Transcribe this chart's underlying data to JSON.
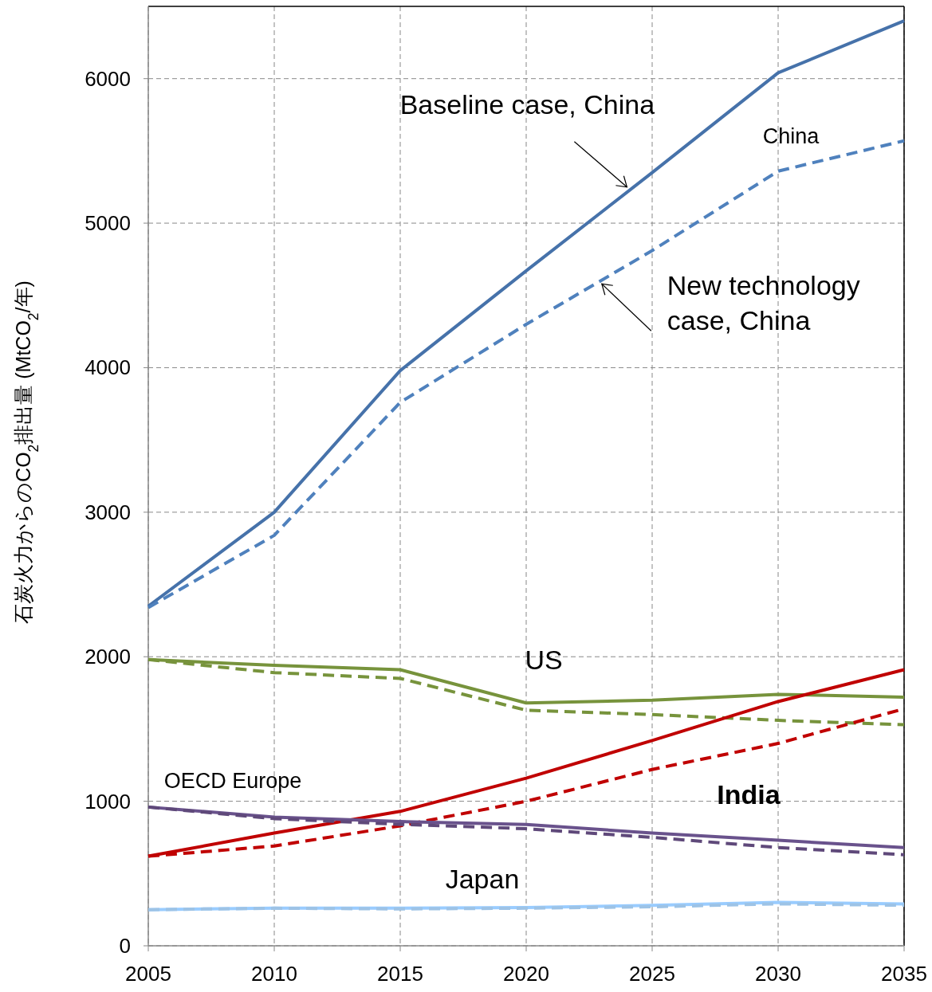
{
  "chart_data": {
    "type": "line",
    "ylabel": "石炭火力からのCO$_{2}$排出量 (MtCO$_{2}$/年)",
    "x": [
      2005,
      2010,
      2015,
      2020,
      2025,
      2030,
      2035
    ],
    "xlim": [
      2005,
      2035
    ],
    "xticks": [
      2005,
      2010,
      2015,
      2020,
      2025,
      2030,
      2035
    ],
    "ylim": [
      0,
      6500
    ],
    "yticks": [
      0,
      1000,
      2000,
      3000,
      4000,
      5000,
      6000
    ],
    "grid": true,
    "series": [
      {
        "color": "#4672aa",
        "line_style": "solid",
        "values": [
          2350,
          3000,
          3980,
          4670,
          5350,
          6040,
          6400
        ]
      },
      {
        "color": "#4f81bd",
        "line_style": "dashed",
        "values": [
          2340,
          2840,
          3760,
          4300,
          4810,
          5360,
          5570
        ]
      },
      {
        "color": "#77933c",
        "line_style": "solid",
        "values": [
          1980,
          1940,
          1910,
          1680,
          1700,
          1740,
          1720
        ]
      },
      {
        "color": "#77933c",
        "line_style": "dashed",
        "values": [
          1980,
          1890,
          1850,
          1630,
          1600,
          1560,
          1530
        ]
      },
      {
        "color": "#c00000",
        "line_style": "solid",
        "values": [
          620,
          780,
          930,
          1160,
          1420,
          1690,
          1910
        ]
      },
      {
        "color": "#c00000",
        "line_style": "dashed",
        "values": [
          620,
          690,
          830,
          1000,
          1220,
          1400,
          1640
        ]
      },
      {
        "color": "#69528c",
        "line_style": "solid",
        "values": [
          960,
          890,
          860,
          840,
          780,
          730,
          680
        ]
      },
      {
        "color": "#5f497a",
        "line_style": "dashed",
        "values": [
          960,
          880,
          840,
          810,
          750,
          680,
          630
        ]
      },
      {
        "color": "#99ccff",
        "line_style": "solid",
        "values": [
          250,
          260,
          260,
          265,
          280,
          300,
          290
        ]
      },
      {
        "color": "#9dc3e6",
        "line_style": "dashed",
        "values": [
          250,
          260,
          255,
          260,
          270,
          290,
          280
        ]
      }
    ],
    "annotations": [
      {
        "text": "Baseline case, China",
        "x": 2024,
        "y": 5250
      },
      {
        "text": "New technology case, China",
        "x": 2023,
        "y": 4580
      },
      "China",
      "US",
      "India",
      "OECD Europe",
      "Japan"
    ]
  }
}
